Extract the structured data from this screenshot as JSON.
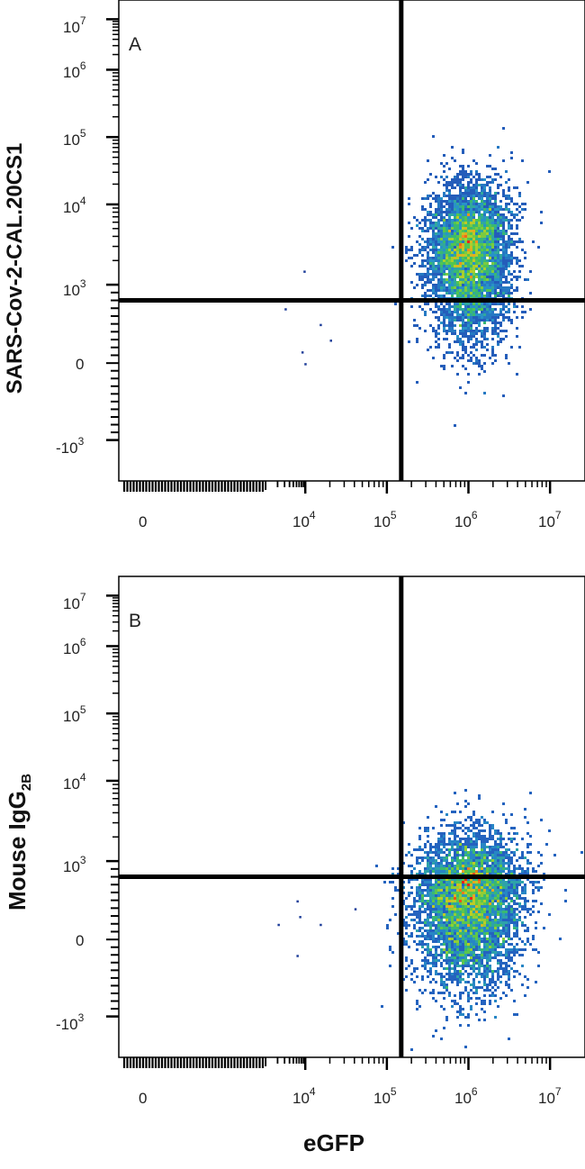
{
  "chart_data": [
    {
      "type": "scatter",
      "panel_label": "A",
      "xlabel": "eGFP",
      "ylabel": "SARS-Cov-2-CAL.20CS1",
      "x_scale": "biexponential",
      "y_scale": "biexponential",
      "x_ticks": [
        {
          "base": "0",
          "exp": ""
        },
        {
          "base": "10",
          "exp": "4"
        },
        {
          "base": "10",
          "exp": "5"
        },
        {
          "base": "10",
          "exp": "6"
        },
        {
          "base": "10",
          "exp": "7"
        }
      ],
      "y_ticks": [
        {
          "base": "-10",
          "exp": "3"
        },
        {
          "base": "0",
          "exp": ""
        },
        {
          "base": "10",
          "exp": "3"
        },
        {
          "base": "10",
          "exp": "4"
        },
        {
          "base": "10",
          "exp": "5"
        },
        {
          "base": "10",
          "exp": "6"
        },
        {
          "base": "10",
          "exp": "7"
        }
      ],
      "quadrant_gate": {
        "x": 150000,
        "y": 800
      },
      "populations": [
        {
          "center": [
            1000000,
            2500
          ],
          "spread": "compact main cluster",
          "density": "high"
        }
      ],
      "sparse_points": [
        [
          3000,
          700
        ],
        [
          9000,
          1500
        ],
        [
          15000,
          500
        ],
        [
          20000,
          300
        ],
        [
          8000,
          150
        ],
        [
          9500,
          0
        ]
      ]
    },
    {
      "type": "scatter",
      "panel_label": "B",
      "xlabel": "eGFP",
      "ylabel": "Mouse IgG",
      "ylabel_subscript": "2B",
      "x_scale": "biexponential",
      "y_scale": "biexponential",
      "x_ticks": [
        {
          "base": "0",
          "exp": ""
        },
        {
          "base": "10",
          "exp": "4"
        },
        {
          "base": "10",
          "exp": "5"
        },
        {
          "base": "10",
          "exp": "6"
        },
        {
          "base": "10",
          "exp": "7"
        }
      ],
      "y_ticks": [
        {
          "base": "-10",
          "exp": "3"
        },
        {
          "base": "0",
          "exp": ""
        },
        {
          "base": "10",
          "exp": "3"
        },
        {
          "base": "10",
          "exp": "4"
        },
        {
          "base": "10",
          "exp": "5"
        },
        {
          "base": "10",
          "exp": "6"
        },
        {
          "base": "10",
          "exp": "7"
        }
      ],
      "quadrant_gate": {
        "x": 150000,
        "y": 800
      },
      "populations": [
        {
          "center": [
            1000000,
            500
          ],
          "spread": "compact main cluster",
          "density": "high"
        }
      ],
      "sparse_points": [
        [
          2000,
          200
        ],
        [
          6000,
          500
        ],
        [
          7000,
          300
        ],
        [
          15000,
          200
        ],
        [
          40000,
          400
        ],
        [
          6000,
          -200
        ]
      ]
    }
  ],
  "figure": {
    "xlabel": "eGFP",
    "colors": {
      "axis": "#000000",
      "gate": "#000000",
      "density_low": "#1f3f9a",
      "density_mid": "#3ec25a",
      "density_high": "#e8251a"
    }
  }
}
